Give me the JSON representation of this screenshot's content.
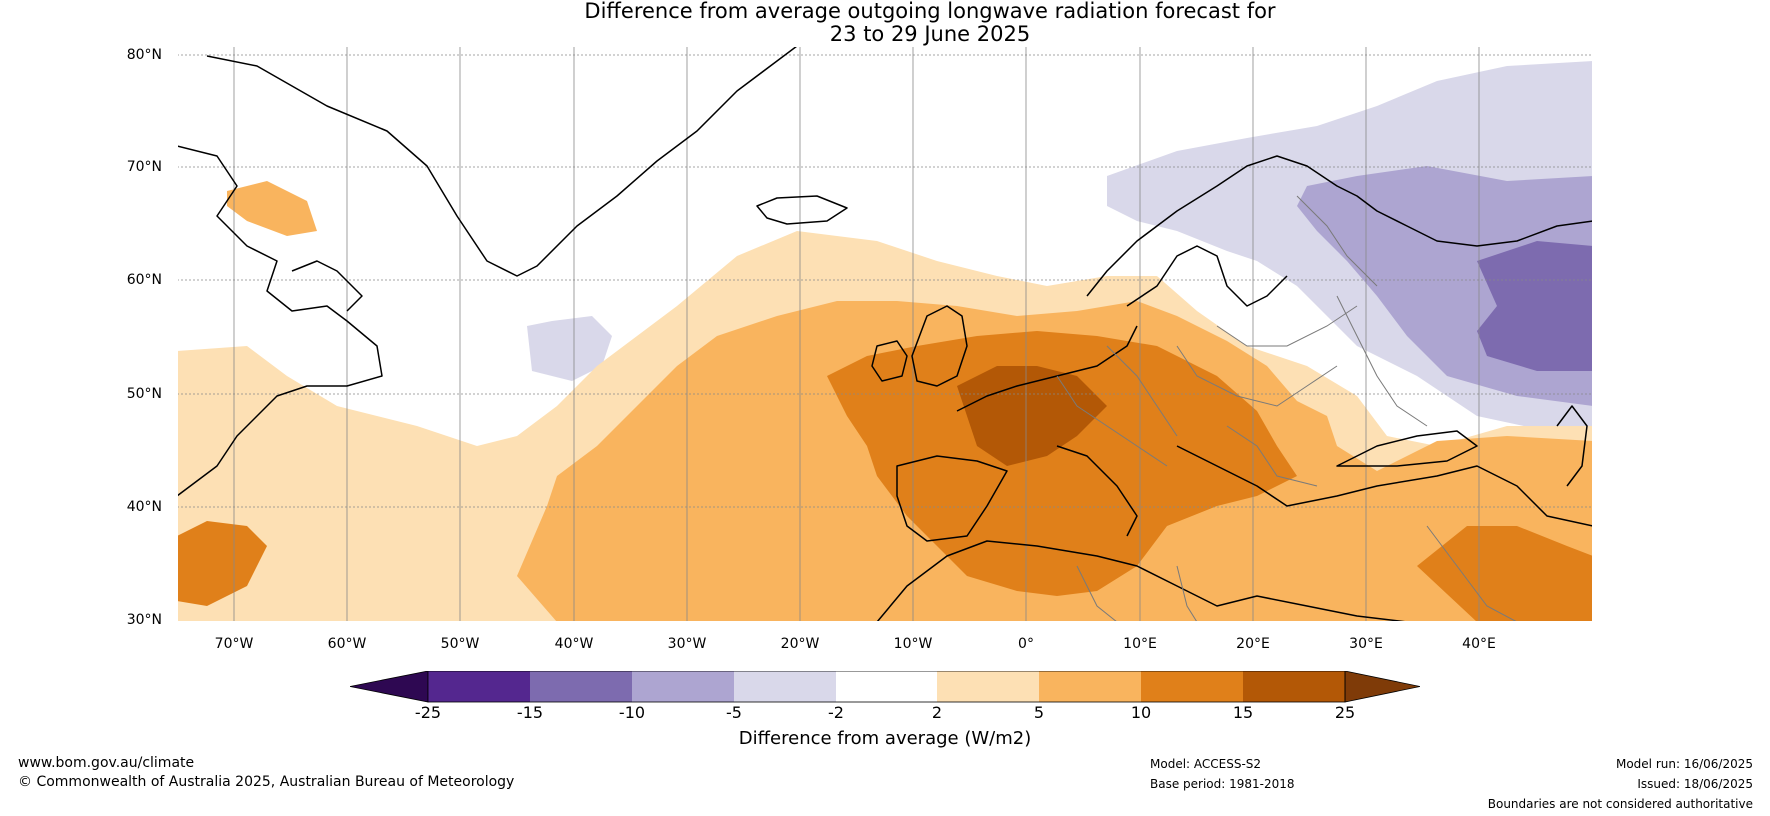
{
  "title": {
    "line1": "Difference from average outgoing longwave radiation forecast for",
    "line2": "23 to 29 June 2025"
  },
  "map": {
    "lat_labels": [
      "80°N",
      "70°N",
      "60°N",
      "50°N",
      "40°N",
      "30°N"
    ],
    "lon_labels": [
      "70°W",
      "60°W",
      "50°W",
      "40°W",
      "30°W",
      "20°W",
      "10°W",
      "0°",
      "10°E",
      "20°E",
      "30°E",
      "40°E"
    ],
    "lon_range": [
      -75,
      50
    ],
    "lat_range": [
      30,
      81
    ],
    "gridlines": true
  },
  "colorbar": {
    "label": "Difference from average (W/m2)",
    "ticks": [
      "-25",
      "-15",
      "-10",
      "-5",
      "-2",
      "2",
      "5",
      "10",
      "15",
      "25"
    ],
    "colors": {
      "under": "#2e0852",
      "c1": "#54278f",
      "c2": "#7d6baf",
      "c3": "#ada5d1",
      "c4": "#d9d8ea",
      "c5": "#ffffff",
      "c6": "#fde0b4",
      "c7": "#f9b45e",
      "c8": "#e0801a",
      "c9": "#b35806",
      "over": "#7f3b08"
    }
  },
  "footer": {
    "url": "www.bom.gov.au/climate",
    "copyright": "© Commonwealth of Australia 2025, Australian Bureau of Meteorology",
    "model": "Model: ACCESS-S2",
    "base_period": "Base period: 1981-2018",
    "model_run": "Model run: 16/06/2025",
    "issued": "Issued: 18/06/2025",
    "disclaimer": "Boundaries are not considered authoritative"
  }
}
